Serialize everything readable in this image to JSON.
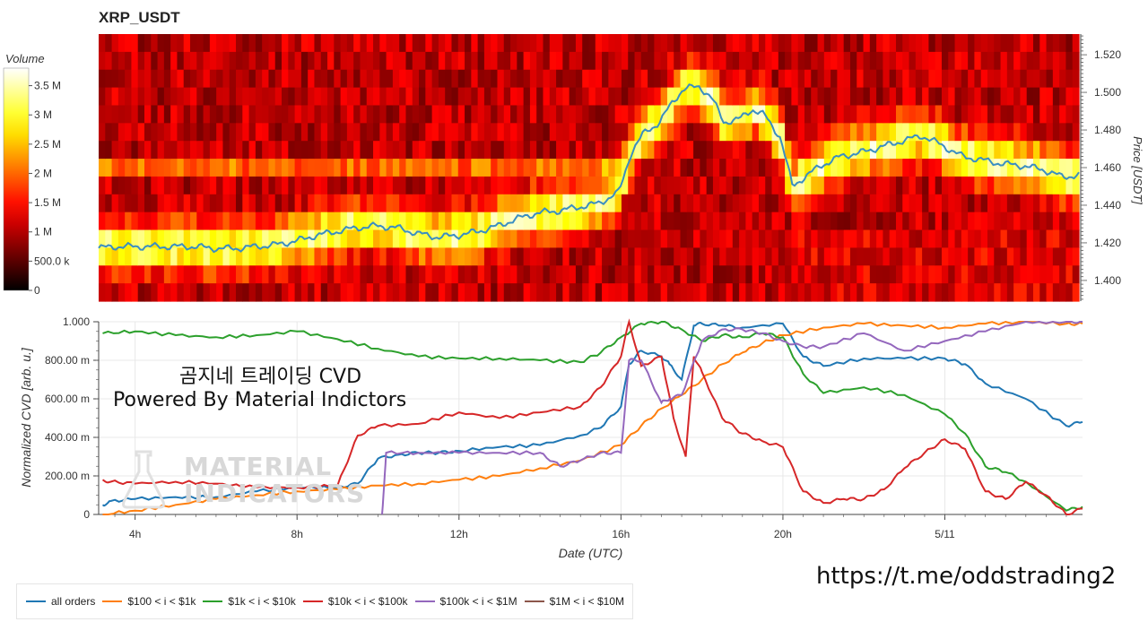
{
  "title": "XRP_USDT",
  "overlay": {
    "line1": "곰지네 트레이딩 CVD",
    "line2": "Powered By Material Indictors"
  },
  "watermark": {
    "line1": "MATERIAL",
    "line2": "INDICATORS"
  },
  "link": "https://t.me/oddstrading2",
  "colors": {
    "all_orders": "#1f77b4",
    "b100_1k": "#ff7f0e",
    "b1k_10k": "#2ca02c",
    "b10k_100k": "#d62728",
    "b100k_1m": "#9467bd",
    "b1m_10m": "#8c564b",
    "price_line": "#3a8ec2"
  },
  "chart_data": [
    {
      "type": "heatmap",
      "colorbar_label": "Volume",
      "colorbar_ticks": [
        "0",
        "500.0 k",
        "1 M",
        "1.5 M",
        "2 M",
        "2.5 M",
        "3 M",
        "3.5 M"
      ],
      "colorbar_range": [
        0,
        3800000
      ],
      "ylabel": "Price [USDT]",
      "y_ticks": [
        "1.400",
        "1.420",
        "1.440",
        "1.460",
        "1.480",
        "1.500",
        "1.520"
      ],
      "ylim": [
        1.389,
        1.531
      ],
      "price_series": {
        "hours": [
          3,
          3.5,
          4,
          4.5,
          5,
          5.5,
          6,
          6.5,
          7,
          7.5,
          8,
          8.5,
          9,
          9.5,
          10,
          10.5,
          11,
          11.5,
          12,
          12.5,
          13,
          13.5,
          14,
          14.5,
          15,
          15.5,
          16,
          16.3,
          16.6,
          17,
          17.3,
          17.6,
          18,
          18.3,
          18.6,
          19,
          19.3,
          19.6,
          20,
          20.3,
          20.6,
          21,
          21.5,
          22,
          22.5,
          23,
          23.5,
          24,
          24.5,
          25,
          25.5,
          26,
          26.5,
          27,
          27.4
        ],
        "values": [
          1.417,
          1.418,
          1.418,
          1.418,
          1.418,
          1.418,
          1.417,
          1.417,
          1.418,
          1.419,
          1.421,
          1.424,
          1.426,
          1.428,
          1.429,
          1.428,
          1.425,
          1.423,
          1.424,
          1.426,
          1.429,
          1.433,
          1.436,
          1.437,
          1.439,
          1.441,
          1.447,
          1.468,
          1.478,
          1.484,
          1.494,
          1.502,
          1.503,
          1.497,
          1.484,
          1.486,
          1.491,
          1.488,
          1.476,
          1.45,
          1.455,
          1.461,
          1.466,
          1.468,
          1.471,
          1.474,
          1.477,
          1.472,
          1.466,
          1.464,
          1.462,
          1.461,
          1.459,
          1.455,
          1.456
        ]
      }
    },
    {
      "type": "line",
      "xlabel": "Date (UTC)",
      "ylabel": "Normalized CVD [arb. u.]",
      "x_ticks": [
        {
          "hour": 4,
          "label": "4h"
        },
        {
          "hour": 8,
          "label": "8h"
        },
        {
          "hour": 12,
          "label": "12h"
        },
        {
          "hour": 16,
          "label": "16h"
        },
        {
          "hour": 20,
          "label": "20h"
        },
        {
          "hour": 24,
          "label": "5/11"
        }
      ],
      "y_ticks": [
        "0",
        "200.00 m",
        "400.00 m",
        "600.00 m",
        "800.00 m",
        "1.000"
      ],
      "xlim": [
        3.1,
        27.4
      ],
      "ylim": [
        0,
        1
      ],
      "series": [
        {
          "name": "all orders",
          "color_key": "all_orders",
          "x": [
            3.2,
            3.4,
            4,
            5,
            6,
            7,
            8,
            9,
            9.5,
            10,
            10.5,
            11,
            11.5,
            12,
            13,
            14,
            15,
            15.5,
            16,
            16.2,
            16.5,
            17,
            17.2,
            17.5,
            17.8,
            18,
            18.5,
            19,
            20,
            20.5,
            21,
            22,
            23,
            24,
            24.5,
            25,
            26,
            27,
            27.4
          ],
          "y": [
            0.05,
            0.07,
            0.08,
            0.09,
            0.09,
            0.12,
            0.14,
            0.14,
            0.16,
            0.29,
            0.31,
            0.32,
            0.32,
            0.33,
            0.35,
            0.36,
            0.41,
            0.45,
            0.56,
            0.78,
            0.85,
            0.82,
            0.78,
            0.7,
            0.98,
            0.99,
            0.98,
            0.97,
            0.99,
            0.82,
            0.77,
            0.81,
            0.81,
            0.81,
            0.78,
            0.68,
            0.6,
            0.46,
            0.48
          ]
        },
        {
          "name": "$100 < i < $1k",
          "color_key": "b100_1k",
          "x": [
            3.2,
            4,
            5,
            6,
            7,
            8,
            9,
            10,
            11,
            12,
            13,
            14,
            15,
            16,
            16.5,
            17,
            17.5,
            18,
            18.5,
            19,
            19.5,
            20,
            21,
            22,
            23,
            24,
            25,
            26,
            27,
            27.4
          ],
          "y": [
            0.0,
            0.02,
            0.05,
            0.08,
            0.1,
            0.12,
            0.13,
            0.15,
            0.16,
            0.18,
            0.2,
            0.24,
            0.28,
            0.36,
            0.46,
            0.55,
            0.62,
            0.7,
            0.78,
            0.84,
            0.89,
            0.93,
            0.97,
            0.99,
            0.98,
            0.97,
            0.99,
            1.0,
            0.99,
            0.99
          ]
        },
        {
          "name": "$1k < i < $10k",
          "color_key": "b1k_10k",
          "x": [
            3.2,
            4,
            5,
            6,
            7,
            8,
            9,
            10,
            11,
            12,
            13,
            14,
            15,
            15.5,
            16,
            16.5,
            17,
            17.5,
            18,
            18.5,
            19,
            19.5,
            20,
            20.5,
            21,
            22,
            23,
            24,
            24.5,
            25,
            25.5,
            26,
            27,
            27.4
          ],
          "y": [
            0.94,
            0.95,
            0.93,
            0.92,
            0.93,
            0.95,
            0.91,
            0.86,
            0.82,
            0.81,
            0.81,
            0.8,
            0.79,
            0.84,
            0.92,
            0.99,
            1.0,
            0.96,
            0.9,
            0.93,
            0.92,
            0.94,
            0.92,
            0.73,
            0.63,
            0.66,
            0.62,
            0.52,
            0.42,
            0.25,
            0.22,
            0.17,
            0.02,
            0.04
          ]
        },
        {
          "name": "$10k < i < $100k",
          "color_key": "b10k_100k",
          "x": [
            3.2,
            3.4,
            4,
            5,
            6,
            7,
            8,
            9,
            9.5,
            10,
            11,
            12,
            13,
            14,
            15,
            15.5,
            16,
            16.2,
            16.5,
            17,
            17.3,
            17.6,
            17.8,
            18,
            18.5,
            19,
            19.5,
            20,
            20.5,
            21,
            21.5,
            22,
            22.5,
            23,
            23.5,
            24,
            24.5,
            25,
            25.5,
            26,
            26.5,
            27,
            27.4
          ],
          "y": [
            0.18,
            0.17,
            0.16,
            0.17,
            0.16,
            0.14,
            0.14,
            0.15,
            0.41,
            0.46,
            0.47,
            0.53,
            0.5,
            0.53,
            0.56,
            0.66,
            0.82,
            1.0,
            0.77,
            0.82,
            0.5,
            0.3,
            0.82,
            0.74,
            0.5,
            0.42,
            0.38,
            0.35,
            0.12,
            0.06,
            0.08,
            0.08,
            0.13,
            0.24,
            0.32,
            0.39,
            0.34,
            0.12,
            0.08,
            0.17,
            0.1,
            0.0,
            0.03
          ]
        },
        {
          "name": "$100k < i < $1M",
          "color_key": "b100k_1m",
          "x": [
            10.1,
            10.2,
            11,
            12,
            13,
            14,
            14.5,
            15,
            15.5,
            16,
            16.2,
            16.5,
            17,
            17.2,
            17.5,
            18,
            18.5,
            19,
            19.5,
            20,
            20.5,
            21,
            22,
            23,
            24,
            25,
            26,
            27,
            27.4
          ],
          "y": [
            0.0,
            0.32,
            0.32,
            0.32,
            0.32,
            0.32,
            0.25,
            0.28,
            0.32,
            0.32,
            0.8,
            0.8,
            0.58,
            0.6,
            0.62,
            0.9,
            0.96,
            0.96,
            0.94,
            0.9,
            0.87,
            0.87,
            0.94,
            0.85,
            0.9,
            0.95,
            1.0,
            1.0,
            1.0
          ]
        },
        {
          "name": "$1M < i < $10M",
          "color_key": "b1m_10m",
          "x": [],
          "y": []
        }
      ]
    }
  ],
  "legend": [
    {
      "label": "all orders",
      "color_key": "all_orders"
    },
    {
      "label": "$100 < i < $1k",
      "color_key": "b100_1k"
    },
    {
      "label": "$1k < i < $10k",
      "color_key": "b1k_10k"
    },
    {
      "label": "$10k < i < $100k",
      "color_key": "b10k_100k"
    },
    {
      "label": "$100k < i < $1M",
      "color_key": "b100k_1m"
    },
    {
      "label": "$1M < i < $10M",
      "color_key": "b1m_10m"
    }
  ]
}
